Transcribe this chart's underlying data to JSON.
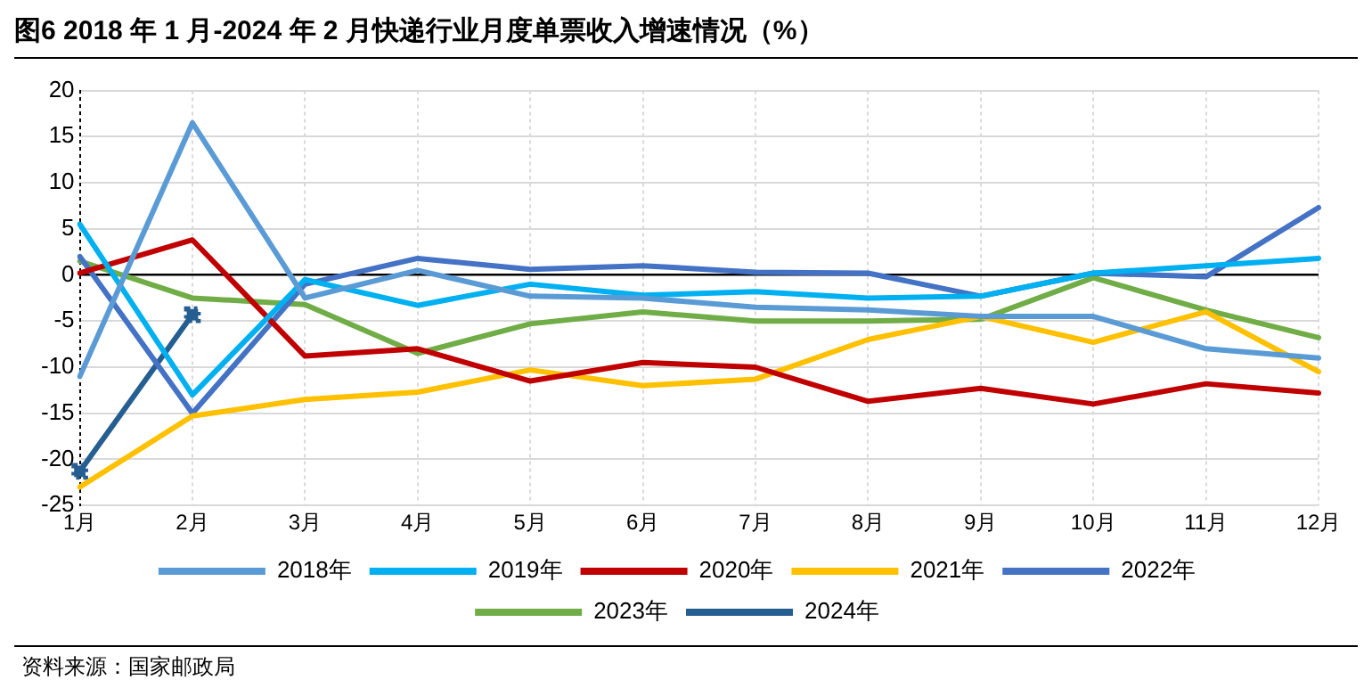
{
  "chart_data": {
    "type": "line",
    "title": "图6  2018 年 1 月-2024 年 2 月快递行业月度单票收入增速情况（%）",
    "annotations": [
      "资料来源：国家邮政局"
    ],
    "categories": [
      "1月",
      "2月",
      "3月",
      "4月",
      "5月",
      "6月",
      "7月",
      "8月",
      "9月",
      "10月",
      "11月",
      "12月"
    ],
    "ylim": [
      -25,
      20
    ],
    "yticks": [
      -25,
      -20,
      -15,
      -10,
      -5,
      0,
      5,
      10,
      15,
      20
    ],
    "grid": true,
    "legend": "bottom",
    "marker": "none",
    "series": [
      {
        "name": "2018年",
        "color": "#5b9bd5",
        "values": [
          -11,
          16.5,
          -2.5,
          0.5,
          -2.3,
          -2.5,
          -3.5,
          -3.8,
          -4.5,
          -4.5,
          -8,
          -9
        ]
      },
      {
        "name": "2019年",
        "color": "#00b0f0",
        "values": [
          5.5,
          -13,
          -0.5,
          -3.3,
          -1,
          -2.2,
          -1.8,
          -2.5,
          -2.3,
          0.2,
          1,
          1.8
        ]
      },
      {
        "name": "2020年",
        "color": "#c00000",
        "values": [
          0.2,
          3.8,
          -8.8,
          -8,
          -11.5,
          -9.5,
          -10,
          -13.7,
          -12.3,
          -14,
          -11.8,
          -12.8
        ]
      },
      {
        "name": "2021年",
        "color": "#ffc000",
        "values": [
          -23,
          -15.3,
          -13.5,
          -12.7,
          -10.3,
          -12,
          -11.3,
          -7,
          -4.5,
          -7.3,
          -4,
          -10.5
        ]
      },
      {
        "name": "2022年",
        "color": "#4472c4",
        "values": [
          2,
          -15,
          -1,
          1.8,
          0.6,
          1,
          0.3,
          0.2,
          -2.3,
          0.2,
          -0.2,
          7.3
        ]
      },
      {
        "name": "2023年",
        "color": "#70ad47",
        "values": [
          1.5,
          -2.5,
          -3.2,
          -8.5,
          -5.3,
          -4,
          -5,
          -5,
          -4.8,
          -0.3,
          -3.8,
          -6.8
        ]
      },
      {
        "name": "2024年",
        "color": "#255e91",
        "marker": "square",
        "values": [
          -21.3,
          -4.3,
          null,
          null,
          null,
          null,
          null,
          null,
          null,
          null,
          null,
          null
        ]
      }
    ]
  }
}
